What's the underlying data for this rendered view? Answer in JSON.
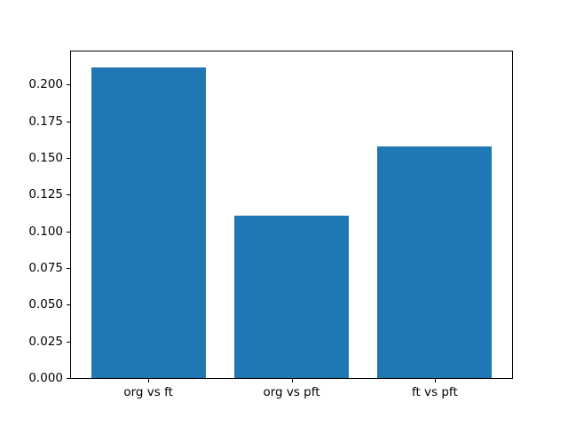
{
  "chart_data": {
    "type": "bar",
    "categories": [
      "org vs ft",
      "org vs pft",
      "ft vs pft"
    ],
    "values": [
      0.212,
      0.111,
      0.158
    ],
    "title": "",
    "xlabel": "",
    "ylabel": "",
    "ylim": [
      0,
      0.2226
    ],
    "yticks": [
      0.0,
      0.025,
      0.05,
      0.075,
      0.1,
      0.125,
      0.15,
      0.175,
      0.2
    ],
    "ytick_labels": [
      "0.000",
      "0.025",
      "0.050",
      "0.075",
      "0.100",
      "0.125",
      "0.150",
      "0.175",
      "0.200"
    ],
    "bar_width_fraction": 0.8,
    "grid": false,
    "legend_position": "none"
  },
  "colors": {
    "bar": "#1f77b4",
    "axes": "#000000",
    "background": "#ffffff",
    "text": "#000000"
  }
}
